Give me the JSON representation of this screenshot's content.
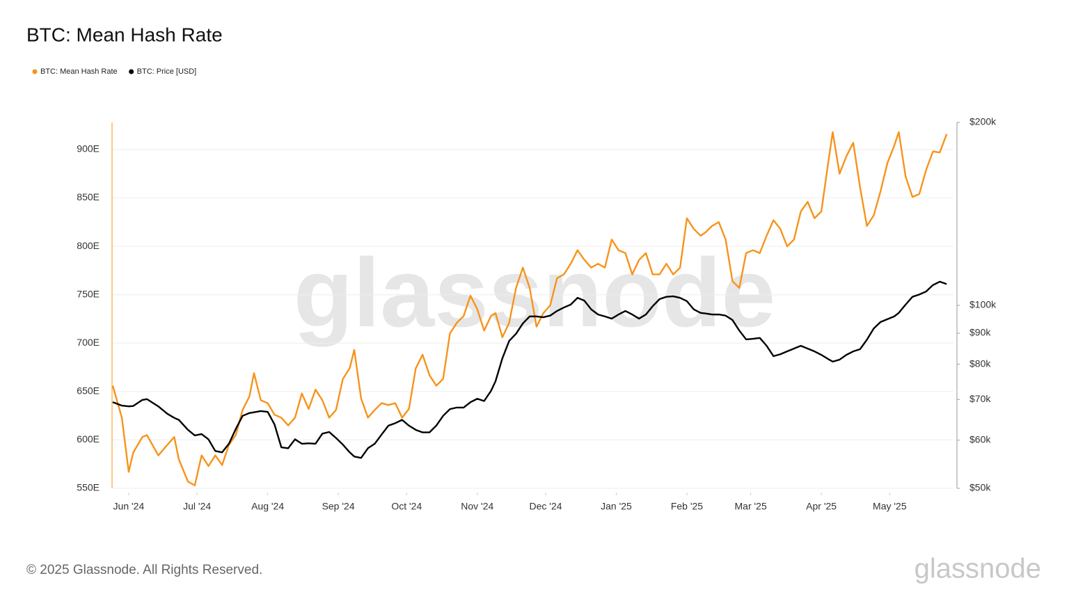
{
  "chart_data": {
    "type": "line",
    "title": "BTC: Mean Hash Rate",
    "footer": "© 2025 Glassnode. All Rights Reserved.",
    "watermark": "glassnode",
    "legend": "top-left",
    "grid": true,
    "y2scale": "log",
    "xlim": [
      "2024-05-25",
      "2025-05-29"
    ],
    "xticks": [
      {
        "value": "2024-06-01",
        "label": "Jun '24"
      },
      {
        "value": "2024-07-01",
        "label": "Jul '24"
      },
      {
        "value": "2024-08-01",
        "label": "Aug '24"
      },
      {
        "value": "2024-09-01",
        "label": "Sep '24"
      },
      {
        "value": "2024-10-01",
        "label": "Oct '24"
      },
      {
        "value": "2024-11-01",
        "label": "Nov '24"
      },
      {
        "value": "2024-12-01",
        "label": "Dec '24"
      },
      {
        "value": "2025-01-01",
        "label": "Jan '25"
      },
      {
        "value": "2025-02-01",
        "label": "Feb '25"
      },
      {
        "value": "2025-03-01",
        "label": "Mar '25"
      },
      {
        "value": "2025-04-01",
        "label": "Apr '25"
      },
      {
        "value": "2025-05-01",
        "label": "May '25"
      }
    ],
    "ylim": [
      550,
      928
    ],
    "yticks": [
      {
        "value": 550,
        "label": "550E"
      },
      {
        "value": 600,
        "label": "600E"
      },
      {
        "value": 650,
        "label": "650E"
      },
      {
        "value": 700,
        "label": "700E"
      },
      {
        "value": 750,
        "label": "750E"
      },
      {
        "value": 800,
        "label": "800E"
      },
      {
        "value": 850,
        "label": "850E"
      },
      {
        "value": 900,
        "label": "900E"
      }
    ],
    "y2lim": [
      50000,
      200000
    ],
    "y2ticks": [
      {
        "value": 50000,
        "label": "$50k"
      },
      {
        "value": 60000,
        "label": "$60k"
      },
      {
        "value": 70000,
        "label": "$70k"
      },
      {
        "value": 80000,
        "label": "$80k"
      },
      {
        "value": 90000,
        "label": "$90k"
      },
      {
        "value": 100000,
        "label": "$100k"
      },
      {
        "value": 200000,
        "label": "$200k"
      }
    ],
    "x": [
      "2024-05-25",
      "2024-05-29",
      "2024-06-01",
      "2024-06-03",
      "2024-06-07",
      "2024-06-09",
      "2024-06-14",
      "2024-06-18",
      "2024-06-21",
      "2024-06-23",
      "2024-06-27",
      "2024-06-30",
      "2024-07-03",
      "2024-07-06",
      "2024-07-09",
      "2024-07-12",
      "2024-07-15",
      "2024-07-18",
      "2024-07-21",
      "2024-07-24",
      "2024-07-26",
      "2024-07-29",
      "2024-08-01",
      "2024-08-04",
      "2024-08-07",
      "2024-08-10",
      "2024-08-13",
      "2024-08-16",
      "2024-08-19",
      "2024-08-22",
      "2024-08-25",
      "2024-08-28",
      "2024-08-31",
      "2024-09-03",
      "2024-09-06",
      "2024-09-08",
      "2024-09-11",
      "2024-09-14",
      "2024-09-17",
      "2024-09-20",
      "2024-09-23",
      "2024-09-26",
      "2024-09-29",
      "2024-10-02",
      "2024-10-05",
      "2024-10-08",
      "2024-10-11",
      "2024-10-14",
      "2024-10-17",
      "2024-10-20",
      "2024-10-23",
      "2024-10-26",
      "2024-10-29",
      "2024-11-01",
      "2024-11-04",
      "2024-11-07",
      "2024-11-09",
      "2024-11-12",
      "2024-11-15",
      "2024-11-18",
      "2024-11-21",
      "2024-11-24",
      "2024-11-27",
      "2024-11-30",
      "2024-12-03",
      "2024-12-06",
      "2024-12-09",
      "2024-12-12",
      "2024-12-15",
      "2024-12-18",
      "2024-12-21",
      "2024-12-24",
      "2024-12-27",
      "2024-12-30",
      "2025-01-02",
      "2025-01-05",
      "2025-01-08",
      "2025-01-11",
      "2025-01-14",
      "2025-01-17",
      "2025-01-20",
      "2025-01-23",
      "2025-01-26",
      "2025-01-29",
      "2025-02-01",
      "2025-02-04",
      "2025-02-07",
      "2025-02-09",
      "2025-02-12",
      "2025-02-15",
      "2025-02-18",
      "2025-02-21",
      "2025-02-24",
      "2025-02-27",
      "2025-03-02",
      "2025-03-05",
      "2025-03-08",
      "2025-03-11",
      "2025-03-14",
      "2025-03-17",
      "2025-03-20",
      "2025-03-23",
      "2025-03-26",
      "2025-03-29",
      "2025-04-01",
      "2025-04-04",
      "2025-04-06",
      "2025-04-09",
      "2025-04-12",
      "2025-04-15",
      "2025-04-18",
      "2025-04-21",
      "2025-04-24",
      "2025-04-27",
      "2025-04-30",
      "2025-05-03",
      "2025-05-05",
      "2025-05-08",
      "2025-05-11",
      "2025-05-14",
      "2025-05-17",
      "2025-05-20",
      "2025-05-23",
      "2025-05-26"
    ],
    "series": [
      {
        "name": "BTC: Mean Hash Rate",
        "color": "#f7931a",
        "axis": "y",
        "values": [
          656,
          623,
          567,
          587,
          603,
          605,
          584,
          595,
          603,
          580,
          557,
          553,
          584,
          573,
          584,
          574,
          595,
          605,
          631,
          645,
          669,
          641,
          638,
          626,
          623,
          615,
          623,
          648,
          632,
          652,
          641,
          623,
          631,
          663,
          674,
          693,
          643,
          623,
          631,
          638,
          636,
          638,
          623,
          632,
          674,
          688,
          667,
          656,
          663,
          710,
          721,
          728,
          749,
          735,
          713,
          728,
          731,
          706,
          721,
          757,
          778,
          757,
          717,
          731,
          739,
          767,
          771,
          782,
          796,
          786,
          778,
          782,
          778,
          807,
          796,
          793,
          771,
          786,
          793,
          771,
          771,
          782,
          771,
          778,
          829,
          818,
          811,
          814,
          821,
          825,
          807,
          764,
          757,
          793,
          796,
          793,
          811,
          827,
          818,
          800,
          807,
          836,
          846,
          829,
          836,
          886,
          918,
          875,
          893,
          907,
          861,
          821,
          832,
          857,
          886,
          904,
          918,
          872,
          851,
          854,
          879,
          898,
          897,
          916
        ]
      },
      {
        "name": "BTC: Price [USD]",
        "color": "#000000",
        "axis": "y2",
        "values": [
          69300,
          68400,
          68200,
          68300,
          69900,
          70100,
          68200,
          66300,
          65300,
          64800,
          62400,
          61100,
          61400,
          60200,
          57600,
          57300,
          59200,
          62600,
          65800,
          66500,
          66700,
          67000,
          66800,
          63700,
          58400,
          58200,
          60200,
          59200,
          59300,
          59200,
          61500,
          61900,
          60500,
          59000,
          57300,
          56400,
          56100,
          58200,
          59200,
          61300,
          63400,
          64000,
          64800,
          63400,
          62400,
          61800,
          61800,
          63400,
          65800,
          67500,
          67900,
          67900,
          69300,
          70200,
          69600,
          72300,
          75000,
          81800,
          87400,
          89800,
          93400,
          95900,
          95900,
          95600,
          96200,
          97900,
          99200,
          100300,
          102900,
          101800,
          98500,
          96600,
          95900,
          95100,
          96600,
          97900,
          96600,
          95100,
          96600,
          99700,
          102400,
          103300,
          103500,
          102900,
          101600,
          98500,
          97200,
          97000,
          96600,
          96600,
          96200,
          94600,
          90900,
          87900,
          88100,
          88400,
          85800,
          82500,
          83100,
          84000,
          84900,
          85800,
          84900,
          84000,
          82900,
          81600,
          80800,
          81400,
          82900,
          84000,
          84700,
          87800,
          91600,
          93900,
          94900,
          95900,
          97200,
          100300,
          103300,
          104200,
          105400,
          108000,
          109400,
          108400
        ]
      }
    ]
  }
}
